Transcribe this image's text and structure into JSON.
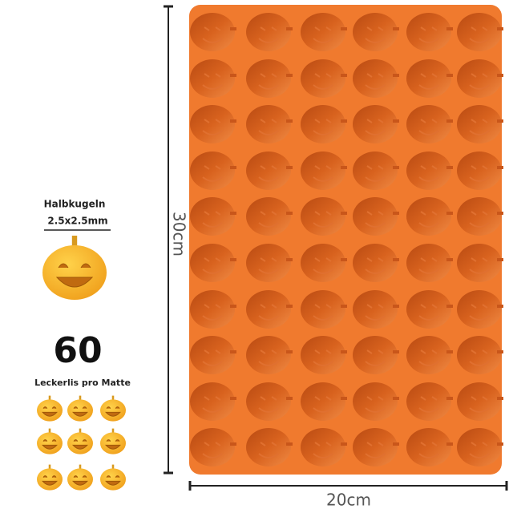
{
  "left_panel": {
    "type_label": "Halbkugeln",
    "size": "2.5x2.5mm",
    "count": "60",
    "count_caption": "Leckerlis pro Matte"
  },
  "dimensions": {
    "height": "30cm",
    "width": "20cm"
  }
}
